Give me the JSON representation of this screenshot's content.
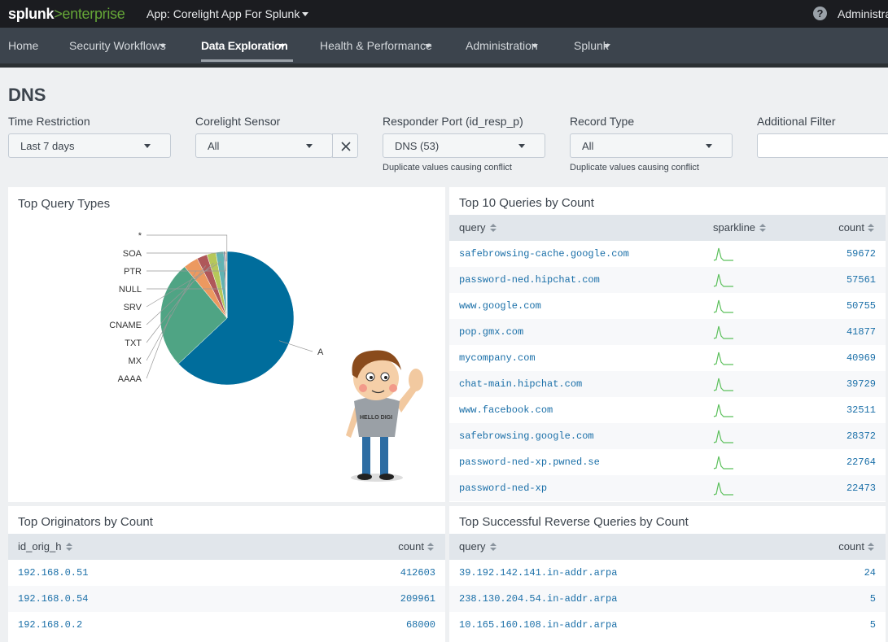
{
  "header": {
    "logo_splunk": "splunk",
    "logo_product": ">enterprise",
    "app": "App: Corelight App For Splunk",
    "help": "?",
    "user": "Administra"
  },
  "nav": {
    "items": [
      "Home",
      "Security Workflows",
      "Data Exploration",
      "Health & Performance",
      "Administration",
      "Splunk"
    ],
    "active": 2
  },
  "page": {
    "title": "DNS"
  },
  "filters": [
    {
      "label": "Time Restriction",
      "value": "Last 7 days"
    },
    {
      "label": "Corelight Sensor",
      "value": "All"
    },
    {
      "label": "Responder Port (id_resp_p)",
      "value": "DNS (53)",
      "note": "Duplicate values causing conflict"
    },
    {
      "label": "Record Type",
      "value": "All",
      "note": "Duplicate values causing conflict"
    },
    {
      "label": "Additional Filter"
    }
  ],
  "chart_data": {
    "type": "pie",
    "title": "Top Query Types",
    "categories": [
      "A",
      "AAAA",
      "MX",
      "TXT",
      "CNAME",
      "SRV",
      "NULL",
      "PTR",
      "SOA",
      "*"
    ],
    "values": [
      63,
      26,
      3.6,
      2.5,
      2.2,
      1.9,
      0.3,
      0.2,
      0.2,
      0.1
    ],
    "colors": [
      "#006d9c",
      "#4fa484",
      "#ec9960",
      "#af575a",
      "#b6c75a",
      "#62b3b2",
      "#294e70",
      "#fd8b8b",
      "#f8be34",
      "#5a4575"
    ]
  },
  "mascot": {
    "shirt_text": "HELLO DIGI"
  },
  "tables": {
    "top_queries": {
      "title": "Top 10 Queries by Count",
      "columns": [
        "query",
        "sparkline",
        "count"
      ],
      "rows": [
        [
          "safebrowsing-cache.google.com",
          59672
        ],
        [
          "password-ned.hipchat.com",
          57561
        ],
        [
          "www.google.com",
          50755
        ],
        [
          "pop.gmx.com",
          41877
        ],
        [
          "mycompany.com",
          40969
        ],
        [
          "chat-main.hipchat.com",
          39729
        ],
        [
          "www.facebook.com",
          32511
        ],
        [
          "safebrowsing.google.com",
          28372
        ],
        [
          "password-ned-xp.pwned.se",
          22764
        ],
        [
          "password-ned-xp",
          22473
        ]
      ]
    },
    "top_originators": {
      "title": "Top Originators by Count",
      "columns": [
        "id_orig_h",
        "count"
      ],
      "rows": [
        [
          "192.168.0.51",
          412603
        ],
        [
          "192.168.0.54",
          209961
        ],
        [
          "192.168.0.2",
          68000
        ]
      ]
    },
    "reverse_queries": {
      "title": "Top Successful Reverse Queries by Count",
      "columns": [
        "query",
        "count"
      ],
      "rows": [
        [
          "39.192.142.141.in-addr.arpa",
          24
        ],
        [
          "238.130.204.54.in-addr.arpa",
          5
        ],
        [
          "10.165.160.108.in-addr.arpa",
          5
        ]
      ]
    }
  }
}
